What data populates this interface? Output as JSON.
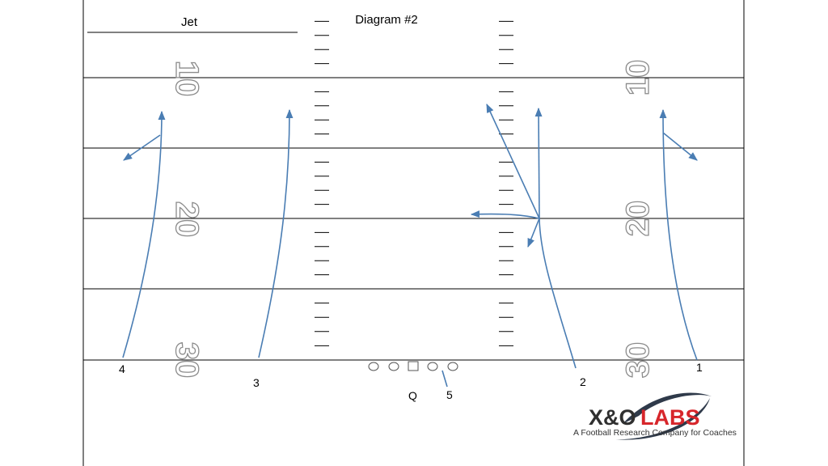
{
  "diagram": {
    "title": "Diagram #2",
    "formation": "Jet",
    "yard_numbers": [
      "10",
      "20",
      "30"
    ],
    "receivers": [
      "1",
      "2",
      "3",
      "4",
      "5"
    ],
    "quarterback": "Q"
  },
  "logo": {
    "main_prefix": "X&O",
    "main_suffix": "LABS",
    "tagline": "A Football Research Company for Coaches",
    "colors": {
      "prefix": "#2f2f2f",
      "suffix": "#d7262b",
      "swoosh": "#2f3a4a"
    }
  },
  "colors": {
    "route": "#4a7db3",
    "lines": "#000000",
    "yard_number_outline": "#8c8c8c"
  }
}
